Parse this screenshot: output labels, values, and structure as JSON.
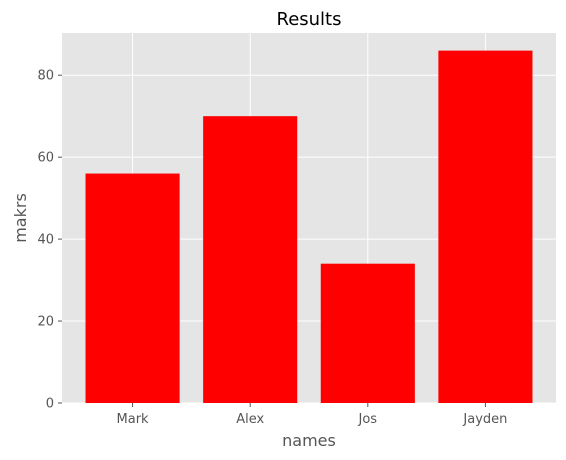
{
  "chart_data": {
    "type": "bar",
    "title": "Results",
    "xlabel": "names",
    "ylabel": "makrs",
    "categories": [
      "Mark",
      "Alex",
      "Jos",
      "Jayden"
    ],
    "values": [
      56,
      70,
      34,
      86
    ],
    "ylim": [
      0,
      90.3
    ],
    "yticks": [
      0,
      20,
      40,
      60,
      80
    ],
    "ytick_labels": [
      "0",
      "20",
      "40",
      "60",
      "80"
    ],
    "grid": true,
    "legend": "none",
    "bar_color": "#ff0000",
    "plot_background": "#e5e5e5",
    "grid_color": "#ffffff"
  }
}
